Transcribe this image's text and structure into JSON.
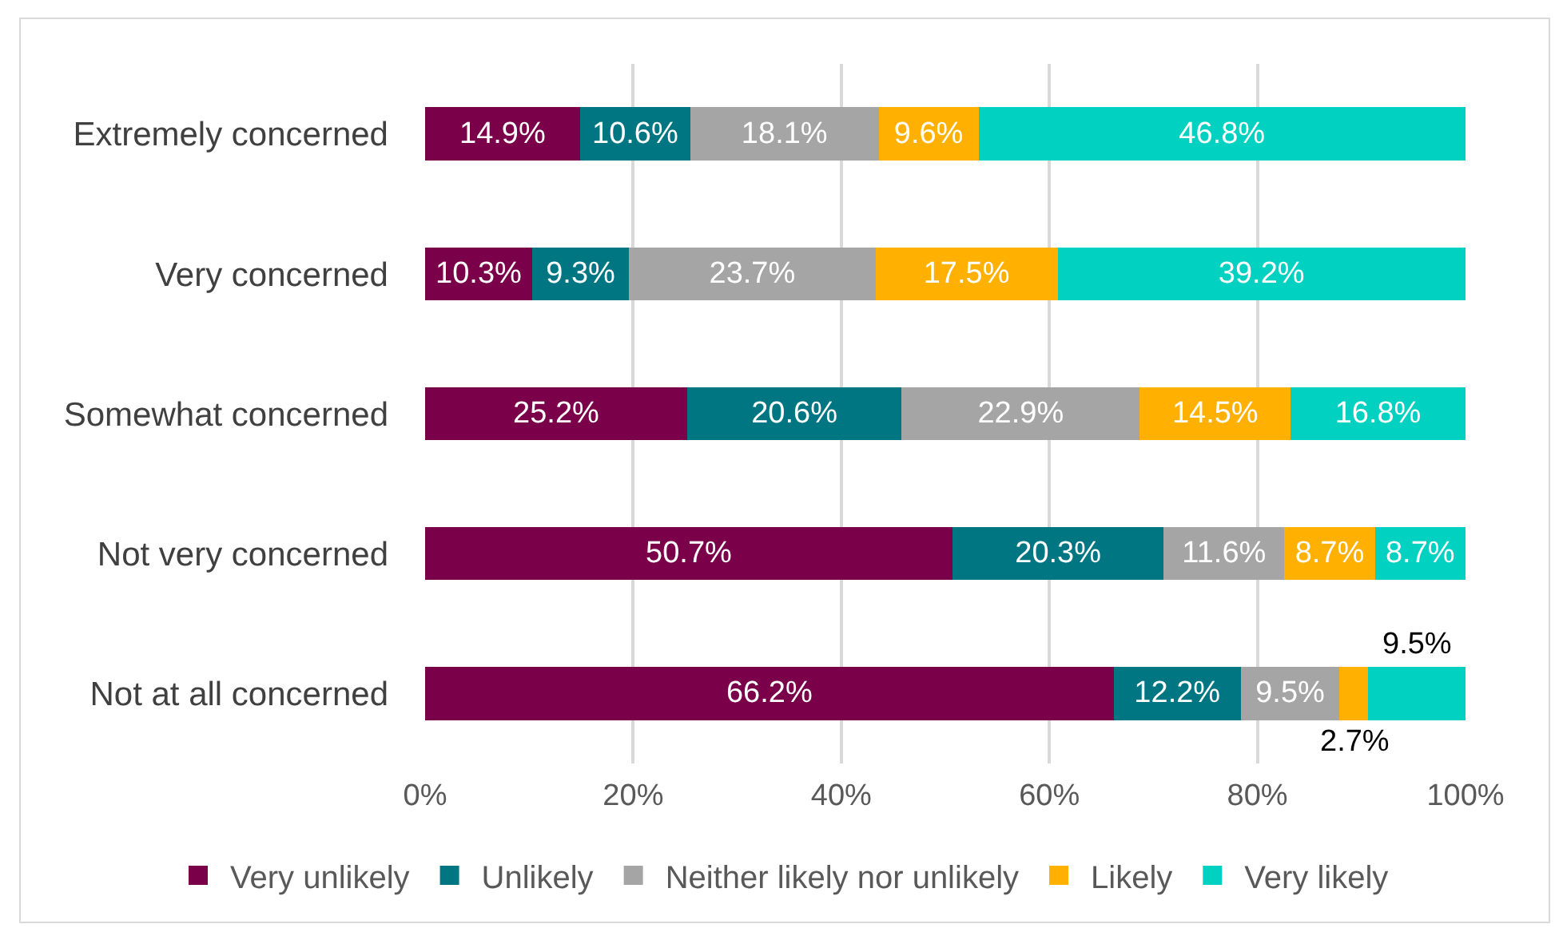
{
  "chart_data": {
    "type": "bar",
    "orientation": "horizontal",
    "stacked": true,
    "categories": [
      "Extremely concerned",
      "Very concerned",
      "Somewhat concerned",
      "Not very concerned",
      "Not at all concerned"
    ],
    "series": [
      {
        "name": "Very unlikely",
        "color": "#7a0049",
        "values": [
          14.9,
          10.3,
          25.2,
          50.7,
          66.2
        ],
        "value_labels": [
          "14.9%",
          "10.3%",
          "25.2%",
          "50.7%",
          "66.2%"
        ]
      },
      {
        "name": "Unlikely",
        "color": "#007682",
        "values": [
          10.6,
          9.3,
          20.6,
          20.3,
          12.2
        ],
        "value_labels": [
          "10.6%",
          "9.3%",
          "20.6%",
          "20.3%",
          "12.2%"
        ]
      },
      {
        "name": "Neither likely nor unlikely",
        "color": "#a5a5a5",
        "values": [
          18.1,
          23.7,
          22.9,
          11.6,
          9.5
        ],
        "value_labels": [
          "18.1%",
          "23.7%",
          "22.9%",
          "11.6%",
          "9.5%"
        ]
      },
      {
        "name": "Likely",
        "color": "#ffb000",
        "values": [
          9.6,
          17.5,
          14.5,
          8.7,
          2.7
        ],
        "value_labels": [
          "9.6%",
          "17.5%",
          "14.5%",
          "8.7%",
          "2.7%"
        ]
      },
      {
        "name": "Very likely",
        "color": "#00d1c1",
        "values": [
          46.8,
          39.2,
          16.8,
          8.7,
          9.5
        ],
        "value_labels": [
          "46.8%",
          "39.2%",
          "16.8%",
          "8.7%",
          "9.5%"
        ]
      }
    ],
    "xlim": [
      0,
      100
    ],
    "xticks": [
      {
        "value": 0,
        "label": "0%"
      },
      {
        "value": 20,
        "label": "20%"
      },
      {
        "value": 40,
        "label": "40%"
      },
      {
        "value": 60,
        "label": "60%"
      },
      {
        "value": 80,
        "label": "80%"
      },
      {
        "value": 100,
        "label": "100%"
      }
    ],
    "grid": "x",
    "legend": "bottom"
  }
}
